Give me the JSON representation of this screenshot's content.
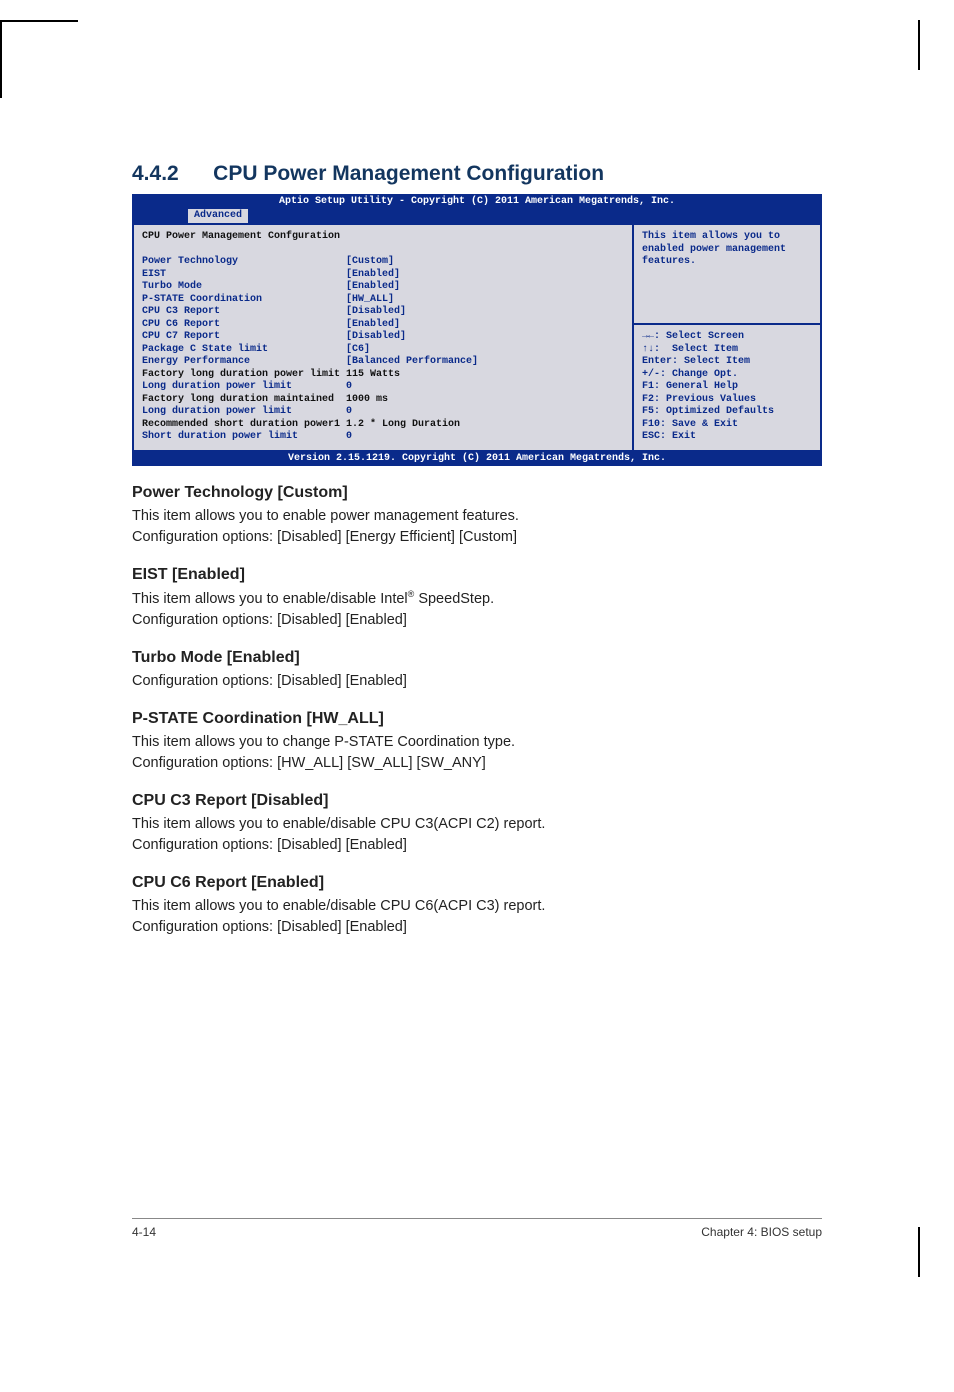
{
  "section": {
    "number": "4.4.2",
    "title": "CPU Power Management Configuration"
  },
  "bios": {
    "header_title": "Aptio Setup Utility - Copyright (C) 2011 American Megatrends, Inc.",
    "tab": "Advanced",
    "footer": "Version 2.15.1219. Copyright (C) 2011 American Megatrends, Inc.",
    "panel_title": "CPU Power Management Confguration",
    "rows": [
      {
        "label": "Power Technology",
        "value": "[Custom]"
      },
      {
        "label": "EIST",
        "value": "[Enabled]"
      },
      {
        "label": "Turbo Mode",
        "value": "[Enabled]"
      },
      {
        "label": "P-STATE Coordination",
        "value": "[HW_ALL]"
      },
      {
        "label": "CPU C3 Report",
        "value": "[Disabled]"
      },
      {
        "label": "CPU C6 Report",
        "value": "[Enabled]"
      },
      {
        "label": "CPU C7 Report",
        "value": "[Disabled]"
      },
      {
        "label": "Package C State limit",
        "value": "[C6]"
      },
      {
        "label": "Energy Performance",
        "value": "[Balanced Performance]"
      },
      {
        "label": "Factory long duration power limit",
        "value": "115 Watts",
        "black": true
      },
      {
        "label": "Long duration power limit",
        "value": "0"
      },
      {
        "label": "Factory long duration maintained",
        "value": "1000 ms",
        "black": true
      },
      {
        "label": "Long duration power limit",
        "value": "0"
      },
      {
        "label": "Recommended short duration power1",
        "value": "1.2 * Long Duration",
        "black": true
      },
      {
        "label": "Short duration power limit",
        "value": "0"
      }
    ],
    "help_top": "This item allows you to enabled power management features.",
    "help_bottom": "→←: Select Screen\n↑↓:  Select Item\nEnter: Select Item\n+/-: Change Opt.\nF1: General Help\nF2: Previous Values\nF5: Optimized Defaults\nF10: Save & Exit\nESC: Exit",
    "colors": {
      "header_bg": "#0a2a8a",
      "header_fg": "#ffffff",
      "body_bg": "#d8d8e0",
      "text_fg": "#0a2a8a",
      "black_fg": "#111111"
    }
  },
  "items": [
    {
      "heading": "Power Technology [Custom]",
      "lines": [
        "This item allows you to enable power management features.",
        "Configuration options: [Disabled] [Energy Efficient] [Custom]"
      ]
    },
    {
      "heading": "EIST [Enabled]",
      "lines_html": "This item allows you to enable/disable Intel<span class=\"sup\">®</span> SpeedStep.\nConfiguration options: [Disabled] [Enabled]"
    },
    {
      "heading": "Turbo Mode [Enabled]",
      "lines": [
        "Configuration options: [Disabled] [Enabled]"
      ]
    },
    {
      "heading": "P-STATE Coordination [HW_ALL]",
      "lines": [
        "This item allows you to change P-STATE Coordination type.",
        "Configuration options: [HW_ALL] [SW_ALL] [SW_ANY]"
      ]
    },
    {
      "heading": "CPU C3 Report [Disabled]",
      "lines": [
        "This item allows you to enable/disable CPU C3(ACPI C2) report.",
        "Configuration options: [Disabled] [Enabled]"
      ]
    },
    {
      "heading": "CPU C6 Report [Enabled]",
      "lines": [
        "This item allows you to enable/disable CPU C6(ACPI C3) report.",
        "Configuration options: [Disabled] [Enabled]"
      ]
    }
  ],
  "footer": {
    "left": "4-14",
    "right": "Chapter 4: BIOS setup"
  }
}
